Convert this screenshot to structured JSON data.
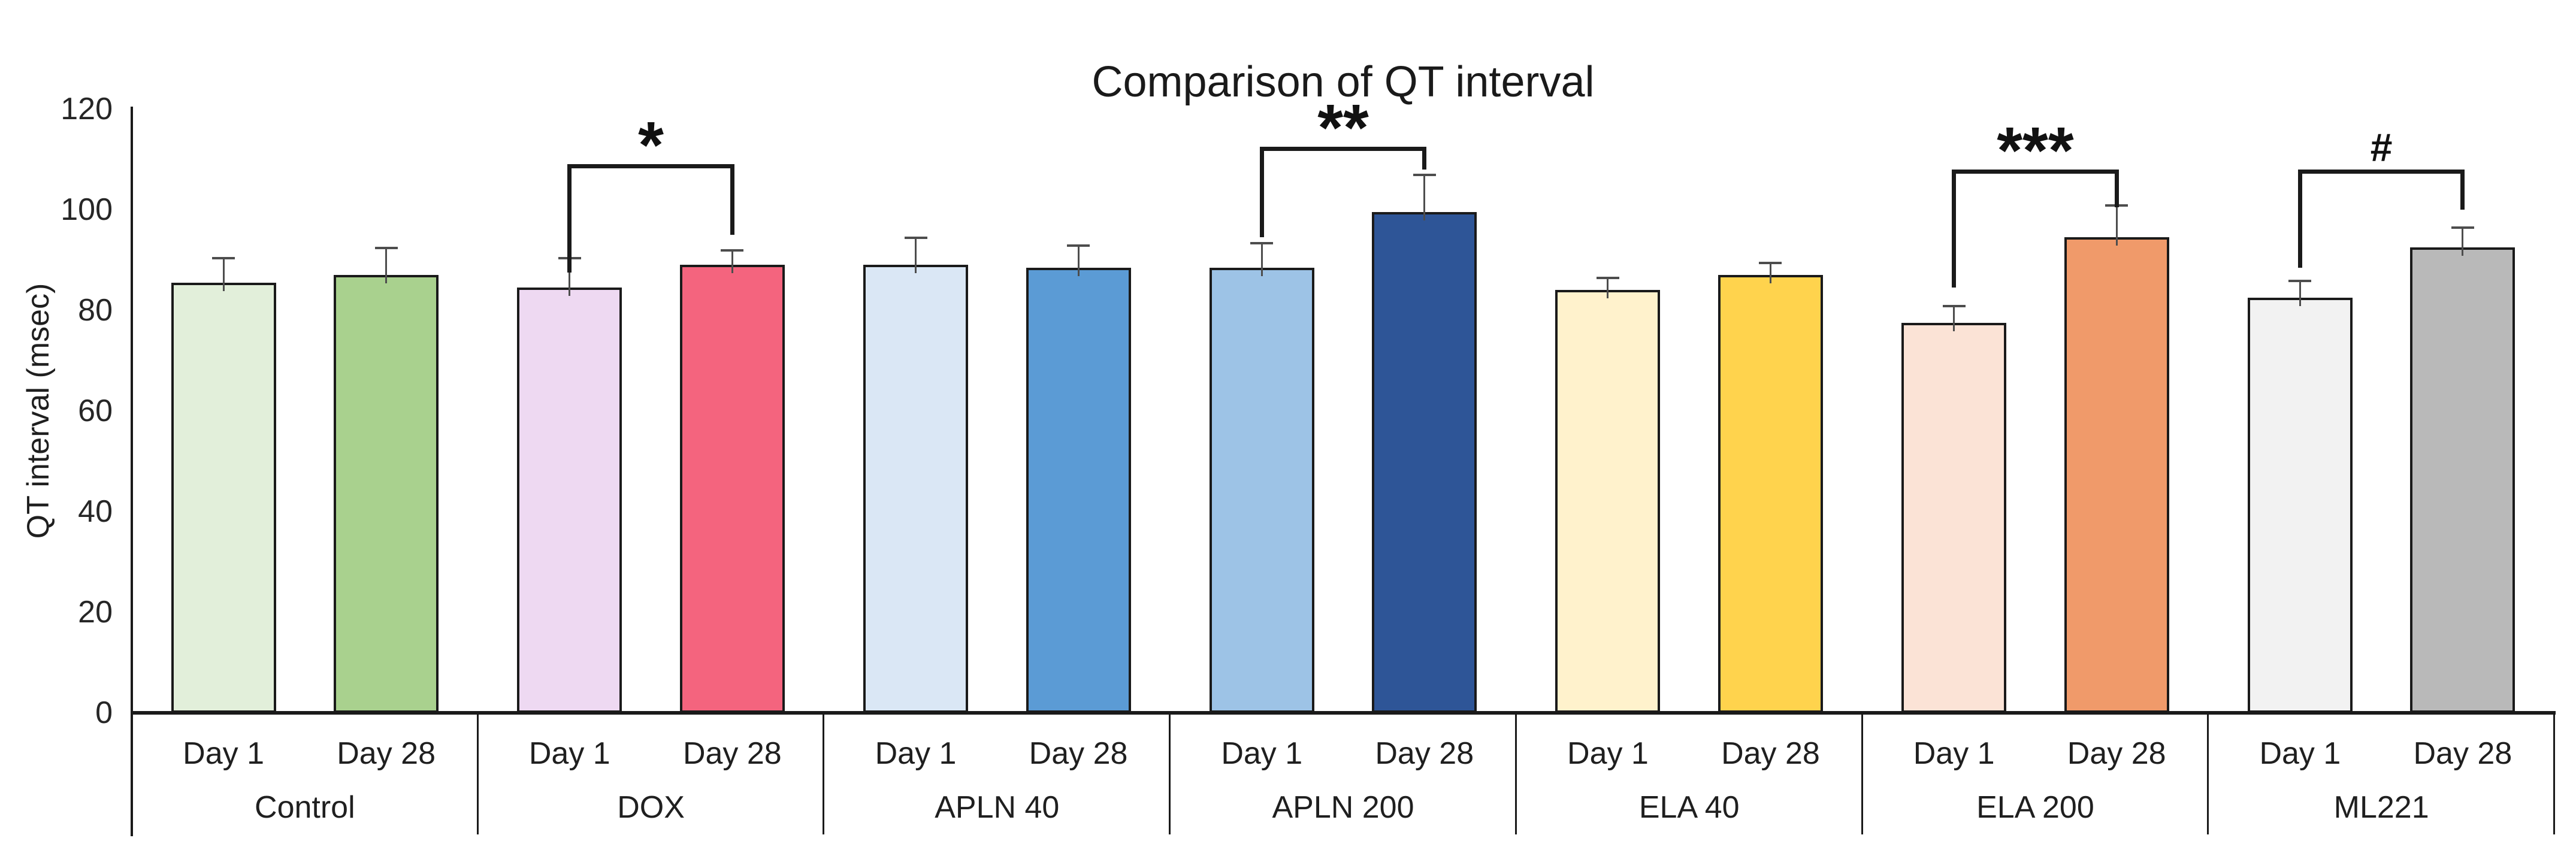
{
  "chart_data": {
    "type": "bar",
    "title": "Comparison of QT interval",
    "ylabel": "QT interval (msec)",
    "xlabel": "",
    "ylim": [
      0,
      120
    ],
    "ytick_step": 20,
    "grid": false,
    "legend_position": "none",
    "categories": [
      "Control",
      "DOX",
      "APLN 40",
      "APLN 200",
      "ELA 40",
      "ELA 200",
      "ML221"
    ],
    "series": [
      {
        "name": "Day 1",
        "values": [
          85.5,
          84.5,
          89,
          88.5,
          84,
          77.5,
          82.5
        ],
        "errors": [
          5,
          6,
          5.5,
          5,
          2.5,
          3.5,
          3.5
        ],
        "colors": [
          "#e2efda",
          "#eed9f2",
          "#dae7f5",
          "#9dc3e6",
          "#fff2cc",
          "#fbe3d6",
          "#f2f2f2"
        ]
      },
      {
        "name": "Day 28",
        "values": [
          87,
          89,
          88.5,
          99.5,
          87,
          94.5,
          92.5
        ],
        "errors": [
          5.5,
          3,
          4.5,
          7.5,
          2.5,
          6.5,
          4
        ],
        "colors": [
          "#a9d18e",
          "#f4647e",
          "#5b9bd5",
          "#2e5597",
          "#ffd34d",
          "#f09a6a",
          "#b9b9b9"
        ]
      }
    ],
    "significance": [
      {
        "category": "DOX",
        "symbol": "*",
        "bracket_top": 109,
        "left_drop_to": 87.5,
        "right_drop_to": 95
      },
      {
        "category": "APLN 200",
        "symbol": "**",
        "bracket_top": 112.5,
        "left_drop_to": 94.5,
        "right_drop_to": 108
      },
      {
        "category": "ELA 200",
        "symbol": "***",
        "bracket_top": 108,
        "left_drop_to": 84.5,
        "right_drop_to": 100.5
      },
      {
        "category": "ML221",
        "symbol": "#",
        "bracket_top": 108,
        "left_drop_to": 88.5,
        "right_drop_to": 100
      }
    ],
    "colors_meaning": {
      "axis_color": "#1a1a1a",
      "error_bar_color": "#4d4d4d"
    }
  }
}
